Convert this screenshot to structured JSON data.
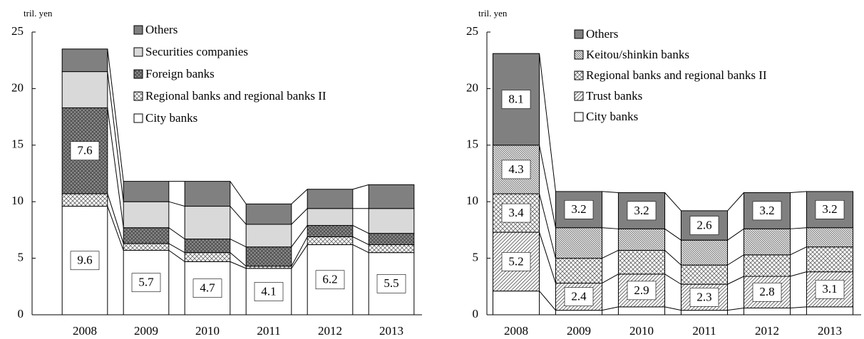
{
  "chart_data": [
    {
      "type": "bar",
      "stacked": true,
      "y_label": "tril. yen",
      "categories": [
        "2008",
        "2009",
        "2010",
        "2011",
        "2012",
        "2013"
      ],
      "ylim": [
        0,
        25
      ],
      "yticks": [
        0,
        5,
        10,
        15,
        20,
        25
      ],
      "series": [
        {
          "name": "City banks",
          "color": "#ffffff",
          "pattern": "solid",
          "values": [
            9.6,
            5.7,
            4.7,
            4.1,
            6.2,
            5.5
          ],
          "value_labels": [
            "9.6",
            "5.7",
            "4.7",
            "4.1",
            "6.2",
            "5.5"
          ]
        },
        {
          "name": "Regional banks and regional banks II",
          "color": "#ffffff",
          "pattern": "crosshatch",
          "values": [
            1.1,
            0.6,
            0.8,
            0.2,
            0.7,
            0.7
          ]
        },
        {
          "name": "Foreign banks",
          "color": "#8c8c8c",
          "pattern": "crosshatch-dark",
          "values": [
            7.6,
            1.4,
            1.2,
            1.7,
            1.0,
            1.0
          ],
          "value_labels": [
            "7.6",
            null,
            null,
            null,
            null,
            null
          ]
        },
        {
          "name": "Securities companies",
          "color": "#d9d9d9",
          "pattern": "solid",
          "values": [
            3.2,
            2.3,
            2.9,
            2.0,
            1.5,
            2.2
          ]
        },
        {
          "name": "Others",
          "color": "#808080",
          "pattern": "solid",
          "values": [
            2.0,
            1.8,
            2.2,
            1.8,
            1.7,
            2.1
          ]
        }
      ]
    },
    {
      "type": "bar",
      "stacked": true,
      "y_label": "tril. yen",
      "categories": [
        "2008",
        "2009",
        "2010",
        "2011",
        "2012",
        "2013"
      ],
      "ylim": [
        0,
        25
      ],
      "yticks": [
        0,
        5,
        10,
        15,
        20,
        25
      ],
      "series": [
        {
          "name": "City banks",
          "color": "#ffffff",
          "pattern": "solid",
          "values": [
            2.1,
            0.4,
            0.7,
            0.4,
            0.6,
            0.7
          ]
        },
        {
          "name": "Trust banks",
          "color": "#ffffff",
          "pattern": "diagonal",
          "values": [
            5.2,
            2.4,
            2.9,
            2.3,
            2.8,
            3.1
          ],
          "value_labels": [
            "5.2",
            "2.4",
            "2.9",
            "2.3",
            "2.8",
            "3.1"
          ]
        },
        {
          "name": "Regional banks and regional banks II",
          "color": "#ffffff",
          "pattern": "crosshatch",
          "values": [
            3.4,
            2.2,
            2.1,
            1.7,
            1.9,
            2.2
          ],
          "value_labels": [
            "3.4",
            null,
            null,
            null,
            null,
            null
          ]
        },
        {
          "name": "Keitou/shinkin banks",
          "color": "#ffffff",
          "pattern": "dense-diagonal",
          "values": [
            4.3,
            2.7,
            1.9,
            2.2,
            2.3,
            1.7
          ],
          "value_labels": [
            "4.3",
            null,
            null,
            null,
            null,
            null
          ]
        },
        {
          "name": "Others",
          "color": "#808080",
          "pattern": "solid",
          "values": [
            8.1,
            3.2,
            3.2,
            2.6,
            3.2,
            3.2
          ],
          "value_labels": [
            "8.1",
            "3.2",
            "3.2",
            "2.6",
            "3.2",
            "3.2"
          ]
        }
      ]
    }
  ]
}
